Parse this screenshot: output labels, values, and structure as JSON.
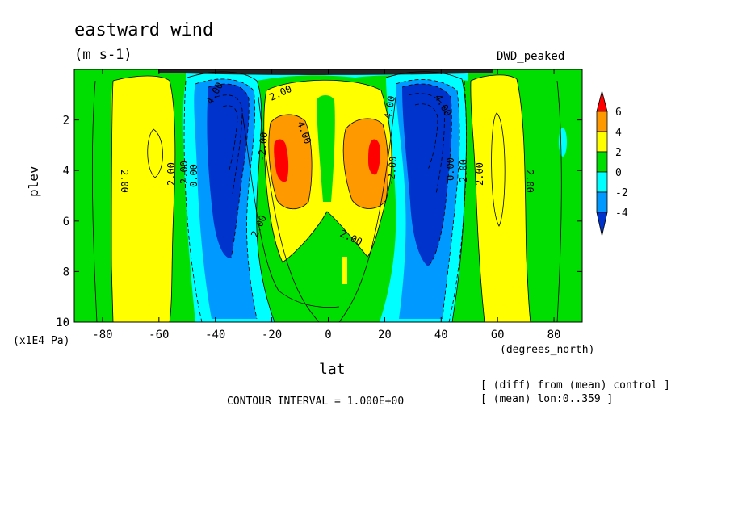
{
  "chart_data": {
    "type": "heatmap",
    "title": "eastward wind",
    "units": "(m s-1)",
    "experiment_label": "DWD_peaked",
    "xlabel": "lat",
    "x_units": "(degrees_north)",
    "ylabel": "plev",
    "y_units": "(x1E4 Pa)",
    "xlim": [
      -90,
      90
    ],
    "ylim": [
      10,
      0
    ],
    "x_ticks": [
      "-80",
      "-60",
      "-40",
      "-20",
      "0",
      "20",
      "40",
      "60",
      "80"
    ],
    "x_tick_values": [
      -80,
      -60,
      -40,
      -20,
      0,
      20,
      40,
      60,
      80
    ],
    "y_ticks": [
      "2",
      "4",
      "6",
      "8",
      "10"
    ],
    "y_tick_values": [
      2,
      4,
      6,
      8,
      10
    ],
    "colorbar": {
      "labels": [
        "6",
        "4",
        "2",
        "0",
        "-2",
        "-4"
      ],
      "label_values": [
        6,
        4,
        2,
        0,
        -2,
        -4
      ],
      "bins": [
        {
          "range": "> 6",
          "color": "#ff0000"
        },
        {
          "range": "4 to 6",
          "color": "#ff9900"
        },
        {
          "range": "2 to 4",
          "color": "#ffff00"
        },
        {
          "range": "0 to 2",
          "color": "#00dd00"
        },
        {
          "range": "-2 to 0",
          "color": "#00ffff"
        },
        {
          "range": "-4 to -2",
          "color": "#0099ff"
        },
        {
          "range": "< -4",
          "color": "#0033cc"
        }
      ]
    },
    "contour_labels": [
      "2.00",
      "2.00",
      "2.00",
      "2.00",
      "2.00",
      "2.00",
      "2.00",
      "2.00",
      "2.00",
      "4.00",
      "4.00",
      "4.00",
      "4.00",
      "0.00",
      "0.00",
      "-2.00",
      "-2.00"
    ],
    "contour_interval_text": "CONTOUR INTERVAL = 1.000E+00",
    "notes": [
      "[ (diff) from (mean) control ]",
      "[ (mean) lon:0..359 ]"
    ],
    "field_features": [
      {
        "feature": "westerly jet max",
        "lat": -16,
        "plev": 3.8,
        "value": 6
      },
      {
        "feature": "westerly jet max",
        "lat": 17,
        "plev": 3.8,
        "value": 6
      },
      {
        "feature": "easterly min",
        "lat": -33,
        "plev": 3.0,
        "value": -6
      },
      {
        "feature": "easterly min",
        "lat": 36,
        "plev": 2.5,
        "value": -6
      },
      {
        "feature": "high-latitude westerly band",
        "lat": -72,
        "plev": 4,
        "value": 2
      },
      {
        "feature": "high-latitude westerly band",
        "lat": 68,
        "plev": 4,
        "value": 2
      }
    ],
    "grid": false
  }
}
